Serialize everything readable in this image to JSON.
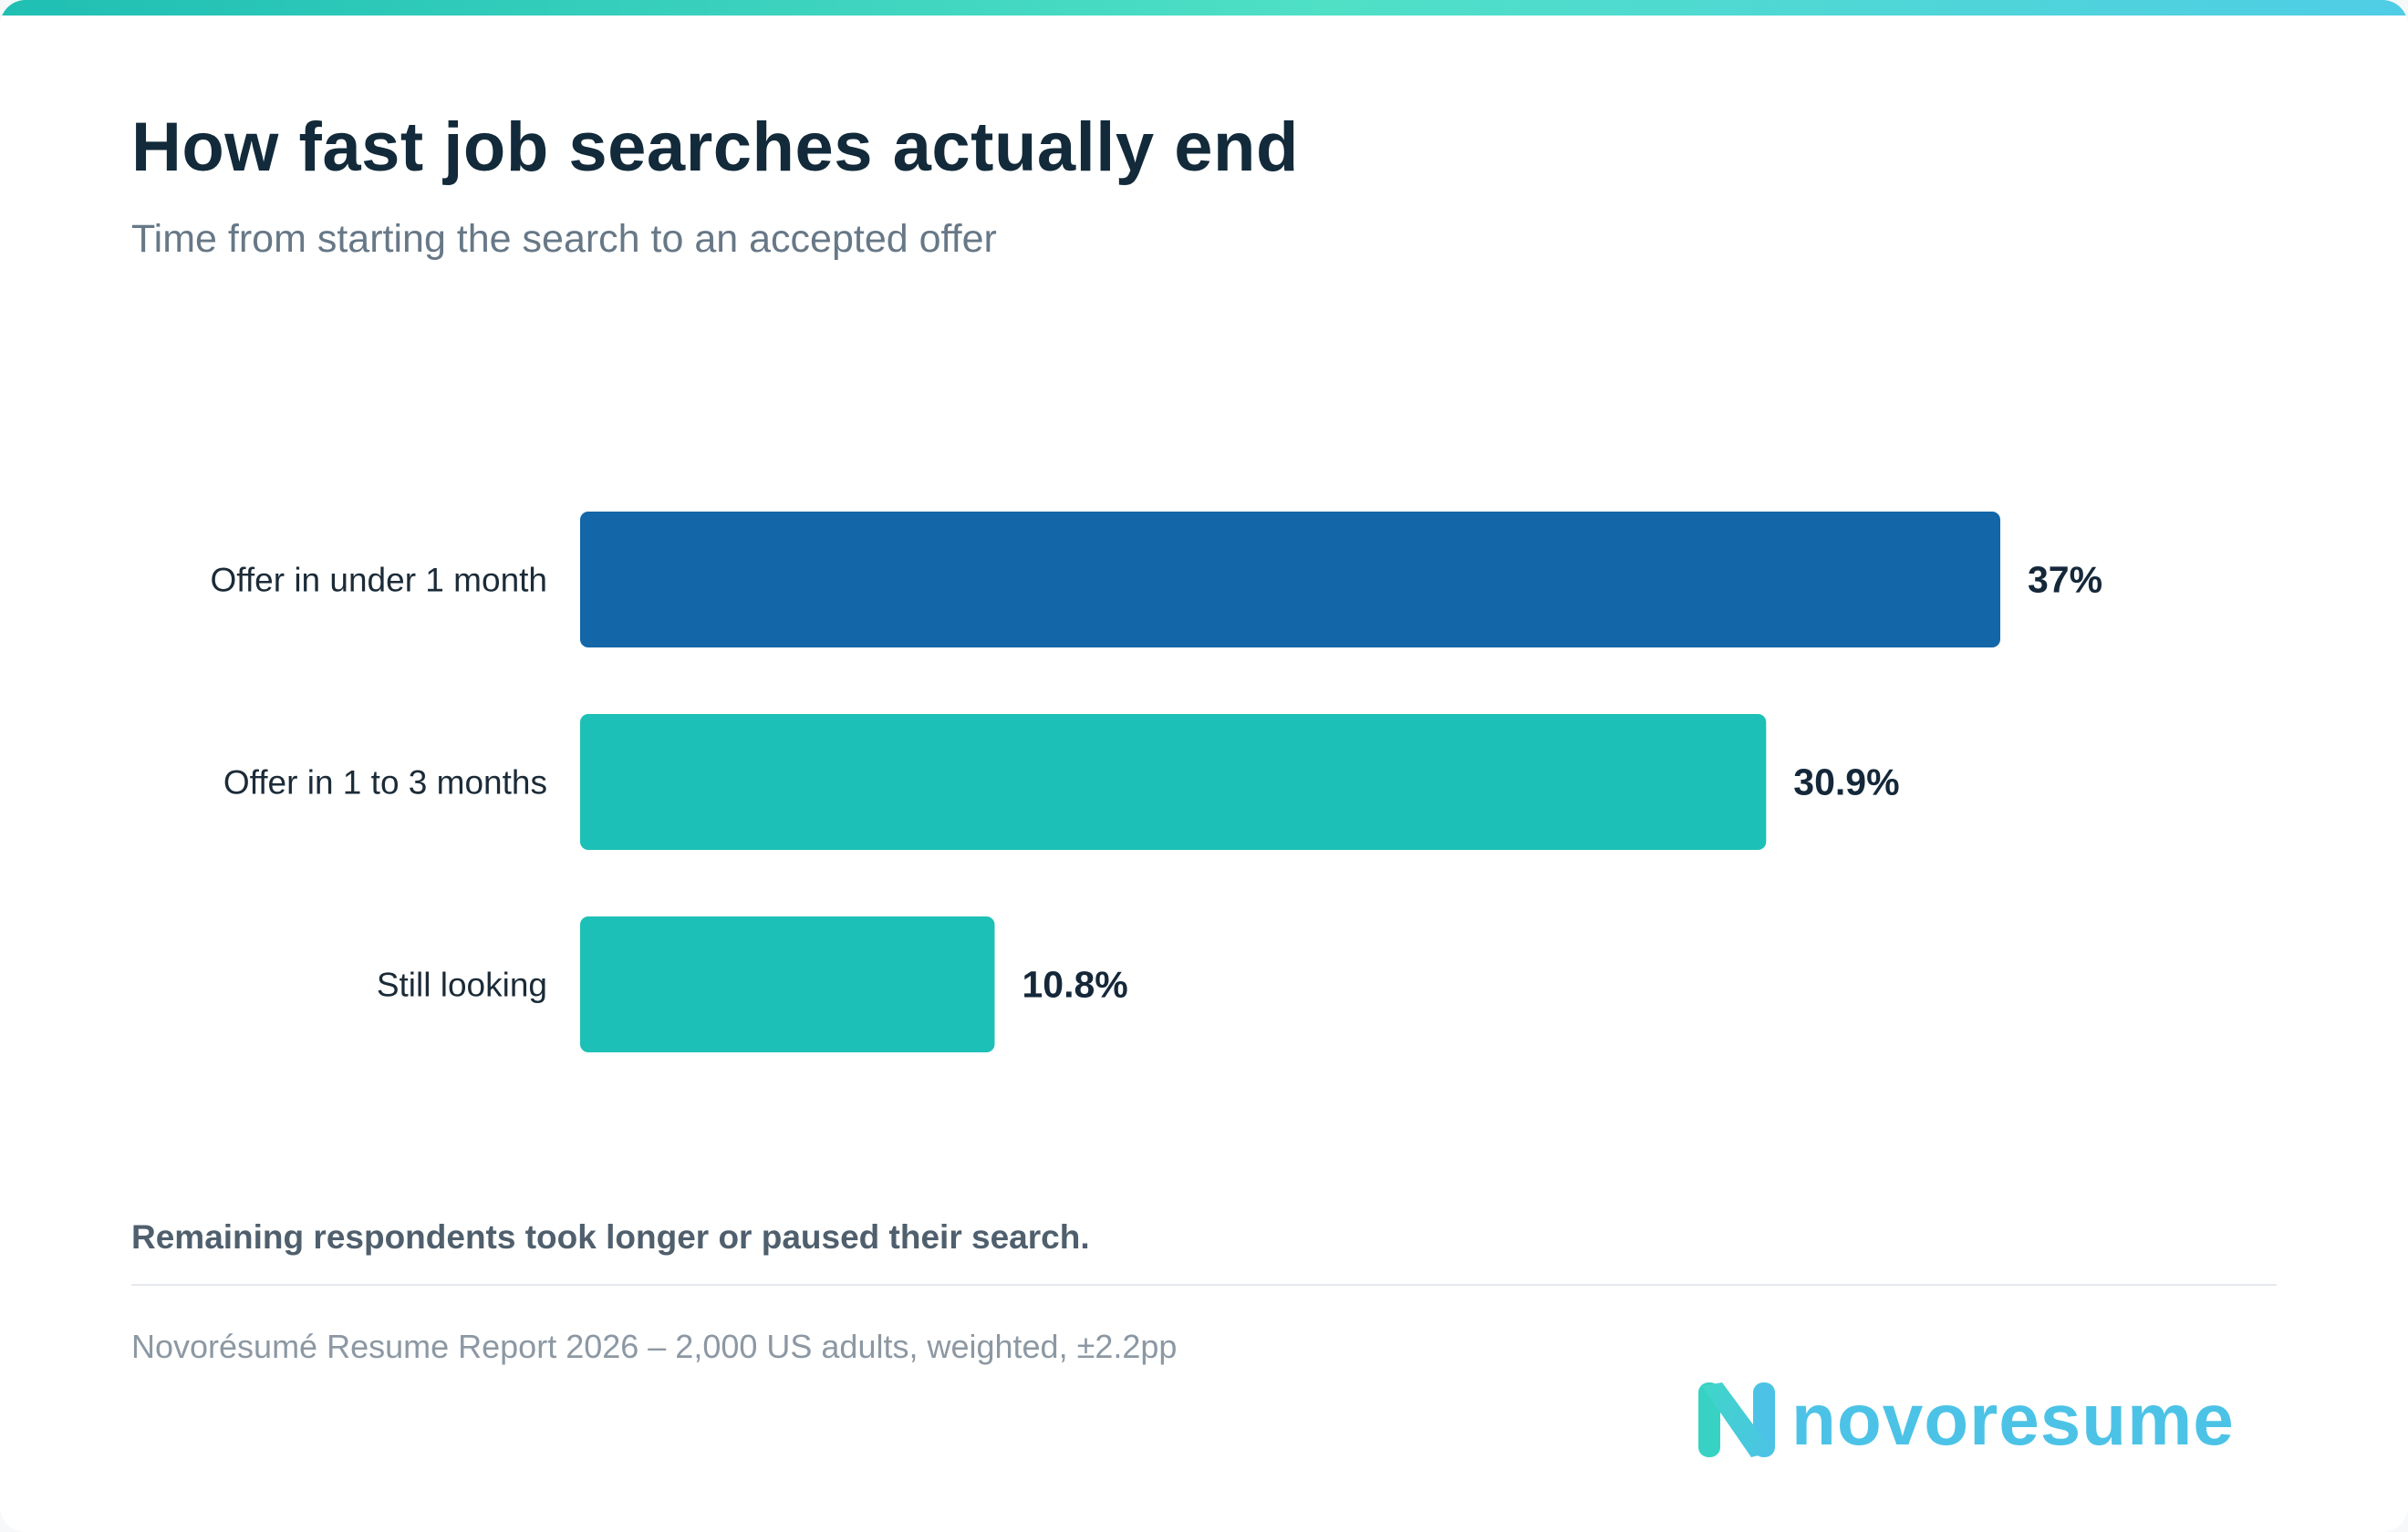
{
  "header": {
    "title": "How fast job searches actually end",
    "subtitle": "Time from starting the search to an accepted offer"
  },
  "chart_data": {
    "type": "bar",
    "orientation": "horizontal",
    "categories": [
      "Offer in under 1 month",
      "Offer in 1 to 3 months",
      "Still looking"
    ],
    "values": [
      37,
      30.9,
      10.8
    ],
    "value_labels": [
      "37%",
      "30.9%",
      "10.8%"
    ],
    "unit": "%",
    "xlim": [
      0,
      37
    ],
    "grid": false,
    "colors": [
      "#1366a8",
      "#1cc0b6",
      "#1cc0b6"
    ]
  },
  "footer": {
    "note": "Remaining respondents took longer or paused their search.",
    "source": "Novorésumé Resume Report 2026 – 2,000 US adults, weighted, ±2.2pp",
    "brand": "novoresume"
  },
  "colors": {
    "title": "#122a3a",
    "accent_blue": "#1366a8",
    "accent_teal": "#1cc0b6",
    "logo": "#4cc3e6"
  }
}
